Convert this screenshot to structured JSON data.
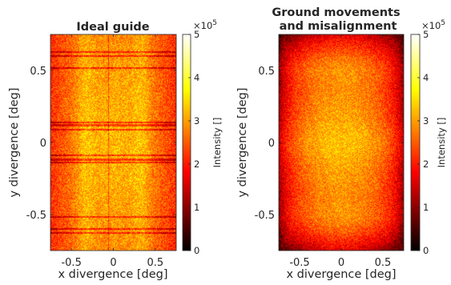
{
  "chart_data": [
    {
      "type": "heatmap",
      "title": "Ideal guide",
      "xlabel": "x divergence [deg]",
      "ylabel": "y divergence [deg]",
      "xlim": [
        -0.75,
        0.75
      ],
      "ylim": [
        -0.75,
        0.75
      ],
      "xticks": [
        -0.5,
        0,
        0.5
      ],
      "xtick_labels": [
        "-0.5",
        "0",
        "0.5"
      ],
      "yticks": [
        -0.5,
        0,
        0.5
      ],
      "ytick_labels": [
        "-0.5",
        "0",
        "0.5"
      ],
      "colorbar": {
        "label": "Intensity []",
        "multiplier": "×10",
        "exponent": "5",
        "range": [
          0,
          500000
        ],
        "ticks": [
          0,
          100000,
          200000,
          300000,
          400000,
          500000
        ],
        "tick_labels": [
          "0",
          "1",
          "2",
          "3",
          "4",
          "5"
        ]
      },
      "colormap": "hot",
      "description_of_pattern": "noisy intensity peaking near center (~3.5e5), bright vertical bands around x=±0.3, dark horizontal stripes near y=±0.1 and y=±0.6 and a dark vertical line near x=-0.06"
    },
    {
      "type": "heatmap",
      "title": [
        "Ground movements",
        "and misalignment"
      ],
      "xlabel": "x divergence [deg]",
      "ylabel": "y divergence [deg]",
      "xlim": [
        -0.75,
        0.75
      ],
      "ylim": [
        -0.75,
        0.75
      ],
      "xticks": [
        -0.5,
        0,
        0.5
      ],
      "xtick_labels": [
        "-0.5",
        "0",
        "0.5"
      ],
      "yticks": [
        -0.5,
        0,
        0.5
      ],
      "ytick_labels": [
        "-0.5",
        "0",
        "0.5"
      ],
      "colorbar": {
        "label": "Intensity []",
        "multiplier": "×10",
        "exponent": "5",
        "range": [
          0,
          500000
        ],
        "ticks": [
          0,
          100000,
          200000,
          300000,
          400000,
          500000
        ],
        "tick_labels": [
          "0",
          "1",
          "2",
          "3",
          "4",
          "5"
        ]
      },
      "colormap": "hot",
      "description_of_pattern": "smoother noisy intensity peaking near center (~3.5e5), darker toward corners, slight bright bands near y=±0.5"
    }
  ]
}
